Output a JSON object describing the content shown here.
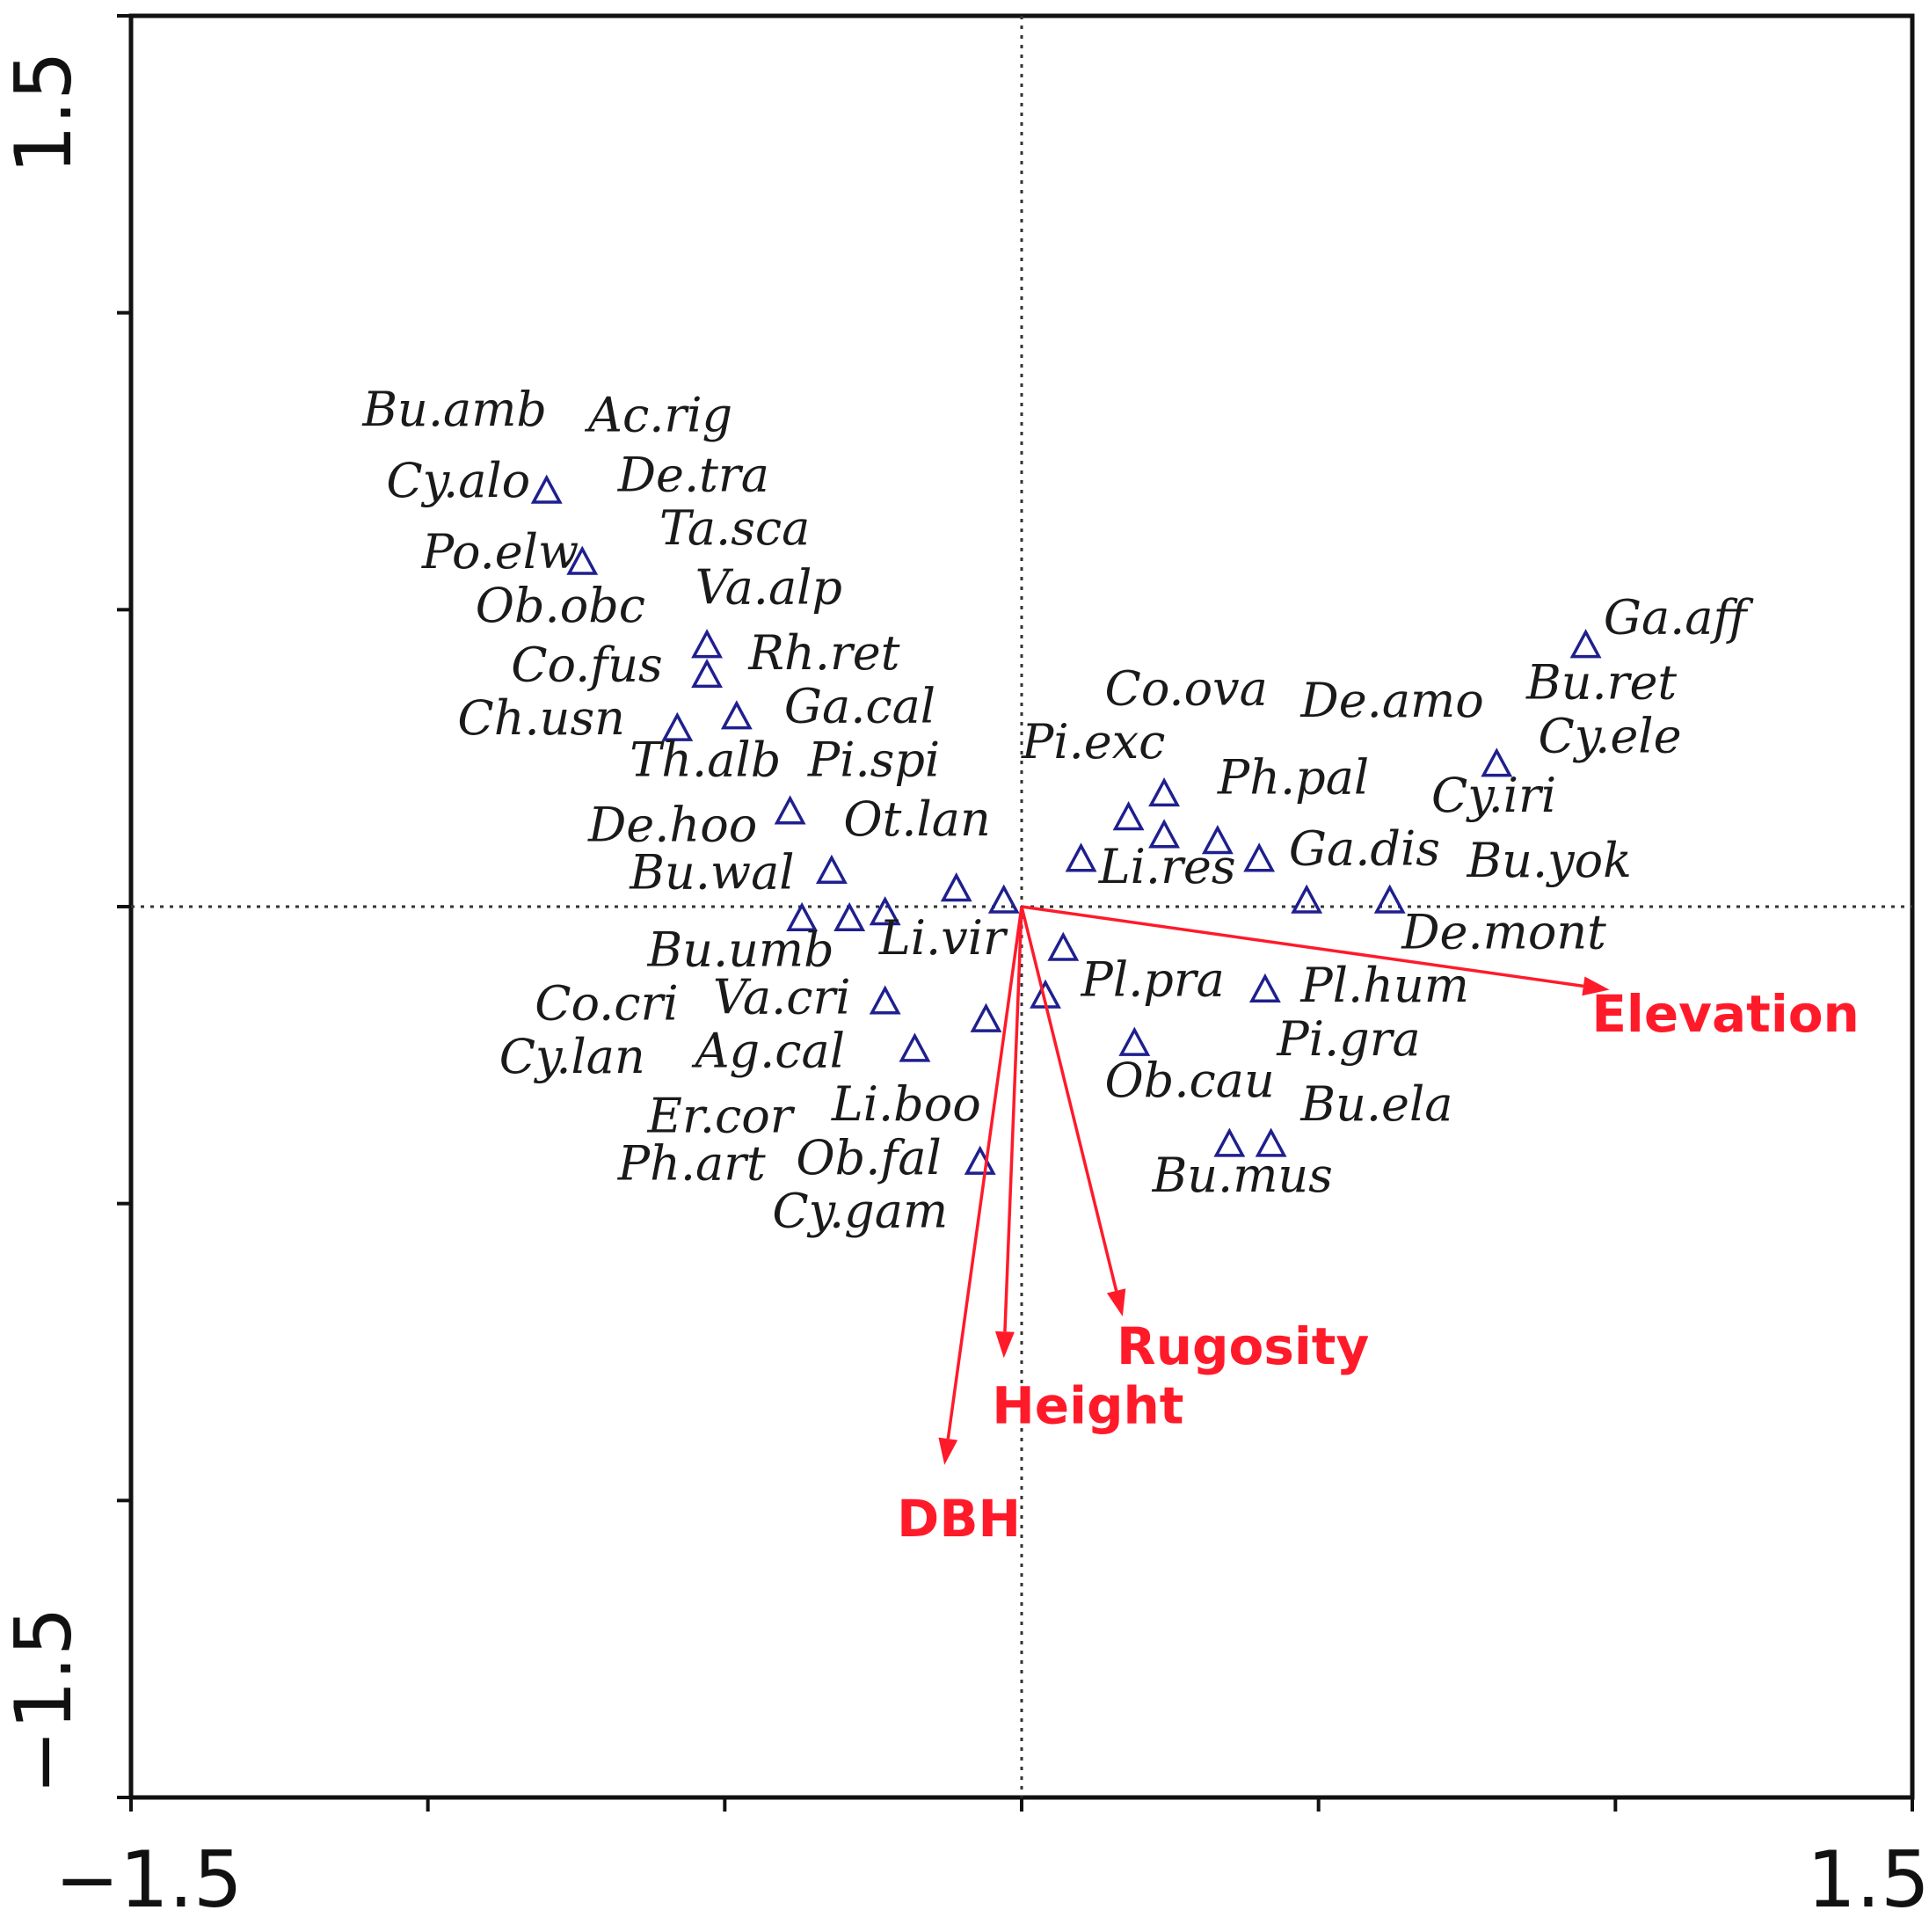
{
  "chart_data": {
    "type": "scatter",
    "title": "",
    "xlabel": "",
    "ylabel": "",
    "xlim": [
      -1.5,
      1.5
    ],
    "ylim": [
      -1.5,
      1.5
    ],
    "x_tick_labels": [
      "−1.5",
      "1.5"
    ],
    "y_tick_labels": [
      "1.5",
      "−1.5"
    ],
    "grid": false,
    "reference_lines": [
      {
        "axis": "x",
        "value": 0
      },
      {
        "axis": "y",
        "value": 0
      }
    ],
    "colors": {
      "points": "#1f1f8f",
      "vectors": "#ff1a2a",
      "labels": "#1a1a1a"
    },
    "points": [
      {
        "x": -0.8,
        "y": 0.7
      },
      {
        "x": -0.74,
        "y": 0.58
      },
      {
        "x": -0.53,
        "y": 0.44
      },
      {
        "x": -0.53,
        "y": 0.39
      },
      {
        "x": -0.58,
        "y": 0.3
      },
      {
        "x": -0.48,
        "y": 0.32
      },
      {
        "x": -0.39,
        "y": 0.16
      },
      {
        "x": -0.32,
        "y": 0.06
      },
      {
        "x": -0.37,
        "y": -0.02
      },
      {
        "x": -0.29,
        "y": -0.02
      },
      {
        "x": -0.23,
        "y": -0.01
      },
      {
        "x": -0.11,
        "y": 0.03
      },
      {
        "x": -0.03,
        "y": 0.01
      },
      {
        "x": 0.07,
        "y": -0.07
      },
      {
        "x": 0.1,
        "y": 0.08
      },
      {
        "x": 0.18,
        "y": 0.15
      },
      {
        "x": 0.24,
        "y": 0.19
      },
      {
        "x": 0.24,
        "y": 0.12
      },
      {
        "x": 0.33,
        "y": 0.11
      },
      {
        "x": 0.4,
        "y": 0.08
      },
      {
        "x": 0.48,
        "y": 0.01
      },
      {
        "x": 0.62,
        "y": 0.01
      },
      {
        "x": 0.8,
        "y": 0.24
      },
      {
        "x": 0.95,
        "y": 0.44
      },
      {
        "x": -0.23,
        "y": -0.16
      },
      {
        "x": -0.18,
        "y": -0.24
      },
      {
        "x": -0.06,
        "y": -0.19
      },
      {
        "x": 0.04,
        "y": -0.15
      },
      {
        "x": 0.19,
        "y": -0.23
      },
      {
        "x": 0.41,
        "y": -0.14
      },
      {
        "x": 0.35,
        "y": -0.4
      },
      {
        "x": 0.42,
        "y": -0.4
      },
      {
        "x": -0.07,
        "y": -0.43
      }
    ],
    "labels": [
      {
        "text": "Bu.amb",
        "x": -1.11,
        "y": 0.81
      },
      {
        "text": "Ac.rig",
        "x": -0.73,
        "y": 0.8
      },
      {
        "text": "Cy.alo",
        "x": -1.07,
        "y": 0.69
      },
      {
        "text": "De.tra",
        "x": -0.68,
        "y": 0.7
      },
      {
        "text": "Po.elw",
        "x": -1.01,
        "y": 0.57
      },
      {
        "text": "Ta.sca",
        "x": -0.61,
        "y": 0.61
      },
      {
        "text": "Va.alp",
        "x": -0.55,
        "y": 0.51
      },
      {
        "text": "Ob.obc",
        "x": -0.92,
        "y": 0.48
      },
      {
        "text": "Rh.ret",
        "x": -0.46,
        "y": 0.4
      },
      {
        "text": "Co.fus",
        "x": -0.86,
        "y": 0.38
      },
      {
        "text": "Ga.cal",
        "x": -0.4,
        "y": 0.31
      },
      {
        "text": "Ch.usn",
        "x": -0.95,
        "y": 0.29
      },
      {
        "text": "Th.alb",
        "x": -0.66,
        "y": 0.22
      },
      {
        "text": "Pi.spi",
        "x": -0.36,
        "y": 0.22
      },
      {
        "text": "De.hoo",
        "x": -0.73,
        "y": 0.11
      },
      {
        "text": "Ot.lan",
        "x": -0.3,
        "y": 0.12
      },
      {
        "text": "Bu.wal",
        "x": -0.66,
        "y": 0.03
      },
      {
        "text": "Bu.umb",
        "x": -0.63,
        "y": -0.1
      },
      {
        "text": "Li.vir",
        "x": -0.24,
        "y": -0.08
      },
      {
        "text": "Va.cri",
        "x": -0.52,
        "y": -0.18
      },
      {
        "text": "Co.cri",
        "x": -0.82,
        "y": -0.19
      },
      {
        "text": "Ag.cal",
        "x": -0.55,
        "y": -0.27
      },
      {
        "text": "Cy.lan",
        "x": -0.88,
        "y": -0.28
      },
      {
        "text": "Li.boo",
        "x": -0.32,
        "y": -0.36
      },
      {
        "text": "Er.cor",
        "x": -0.63,
        "y": -0.38
      },
      {
        "text": "Ob.fal",
        "x": -0.38,
        "y": -0.45
      },
      {
        "text": "Ph.art",
        "x": -0.68,
        "y": -0.46
      },
      {
        "text": "Cy.gam",
        "x": -0.42,
        "y": -0.54
      },
      {
        "text": "Co.ova",
        "x": 0.14,
        "y": 0.34
      },
      {
        "text": "De.amo",
        "x": 0.47,
        "y": 0.32
      },
      {
        "text": "Pi.exc",
        "x": 0.0,
        "y": 0.25
      },
      {
        "text": "Ph.pal",
        "x": 0.33,
        "y": 0.19
      },
      {
        "text": "Li.res",
        "x": 0.13,
        "y": 0.04
      },
      {
        "text": "Ga.dis",
        "x": 0.45,
        "y": 0.07
      },
      {
        "text": "Pl.pra",
        "x": 0.1,
        "y": -0.15
      },
      {
        "text": "Pl.hum",
        "x": 0.47,
        "y": -0.16
      },
      {
        "text": "Pi.gra",
        "x": 0.43,
        "y": -0.25
      },
      {
        "text": "Ob.cau",
        "x": 0.14,
        "y": -0.32
      },
      {
        "text": "Bu.ela",
        "x": 0.47,
        "y": -0.36
      },
      {
        "text": "Bu.mus",
        "x": 0.22,
        "y": -0.48
      },
      {
        "text": "Ga.aff",
        "x": 0.98,
        "y": 0.46
      },
      {
        "text": "Bu.ret",
        "x": 0.85,
        "y": 0.35
      },
      {
        "text": "Cy.ele",
        "x": 0.87,
        "y": 0.26
      },
      {
        "text": "Cy.iri",
        "x": 0.69,
        "y": 0.16
      },
      {
        "text": "Bu.yok",
        "x": 0.75,
        "y": 0.05
      },
      {
        "text": "De.mont",
        "x": 0.64,
        "y": -0.07
      }
    ],
    "vectors": [
      {
        "name": "Elevation",
        "x": 0.99,
        "y": -0.14,
        "label_x": 0.96,
        "label_y": -0.21
      },
      {
        "name": "Rugosity",
        "x": 0.17,
        "y": -0.69,
        "label_x": 0.16,
        "label_y": -0.77
      },
      {
        "name": "Height",
        "x": -0.03,
        "y": -0.76,
        "label_x": -0.05,
        "label_y": -0.87
      },
      {
        "name": "DBH",
        "x": -0.13,
        "y": -0.94,
        "label_x": -0.21,
        "label_y": -1.06
      }
    ]
  }
}
